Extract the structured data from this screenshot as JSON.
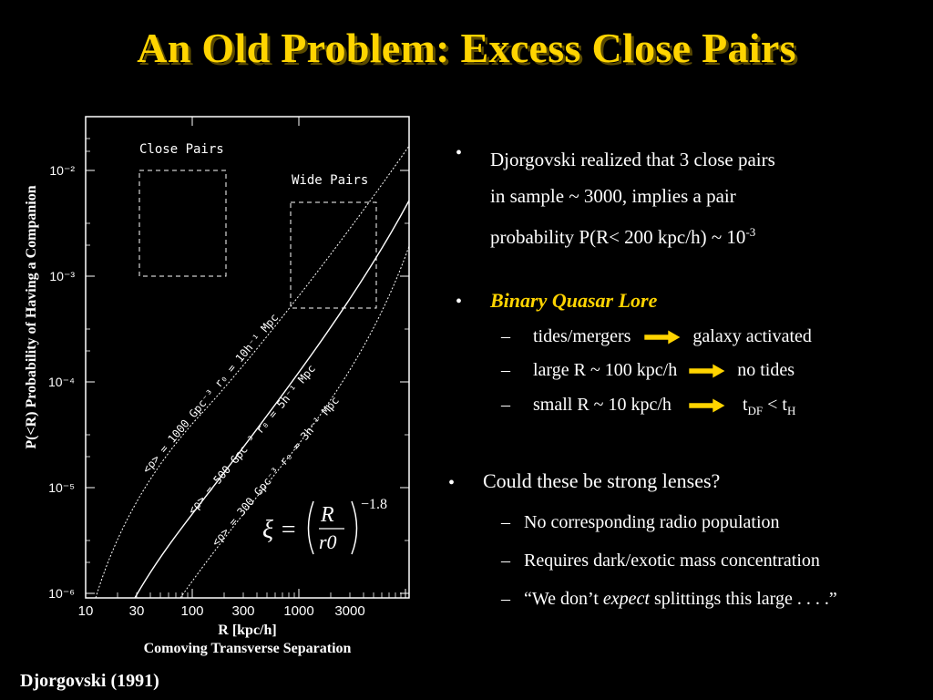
{
  "slide": {
    "title": "An Old Problem: Excess Close Pairs",
    "citation": "Djorgovski (1991)"
  },
  "plot": {
    "ylabel": "P(<R)   Probability of  Having a Companion",
    "xlabel_1": "R   [kpc/h]",
    "xlabel_2": "Comoving Transverse Separation",
    "box_close": "Close Pairs",
    "box_wide": "Wide Pairs",
    "formula_lhs": "ξ =",
    "formula_num": "R",
    "formula_den": "r0",
    "formula_exp": "−1.8",
    "curve_labels": [
      "<ρ> = 1000 Gpc⁻³    r₀ = 10h⁻¹ Mpc",
      "<ρ> = 500 Gpc⁻³    r₀ = 5h⁻¹ Mpc",
      "<ρ> = 300 Gpc⁻³    r₀ = 3h⁻¹ Mpc"
    ],
    "x_ticks": [
      "10",
      "30",
      "100",
      "300",
      "1000",
      "3000"
    ],
    "y_ticks": [
      "10⁻²",
      "10⁻³",
      "10⁻⁴",
      "10⁻⁵",
      "10⁻⁶"
    ]
  },
  "bullets": {
    "b1_line1": "Djorgovski realized that 3 close pairs",
    "b1_line2": "in sample ~ 3000, implies a pair",
    "b1_line3": "probability P(R< 200 kpc/h) ~ 10",
    "b1_exp": "-3",
    "b2_head": "Binary Quasar Lore",
    "b2_s1_left": "tides/mergers",
    "b2_s1_right": "galaxy activated",
    "b2_s2_left": "large R  ~ 100 kpc/h",
    "b2_s2_right": "no tides",
    "b2_s3_left": "small R ~ 10 kpc/h",
    "b2_s3_t1": "t",
    "b2_s3_sub1": "DF",
    "b2_s3_lt": " < t",
    "b2_s3_sub2": "H",
    "b3_head": "Could these be strong lenses?",
    "b3_s1": "No corresponding radio population",
    "b3_s2": "Requires dark/exotic mass concentration",
    "b3_s3_pre": "“We don’t ",
    "b3_s3_em": "expect",
    "b3_s3_post": " splittings this large . . . .”",
    "bullet_char": "•",
    "dash_char": "–"
  },
  "colors": {
    "title": "#ffd400",
    "arrow": "#ffd400",
    "background": "#000000",
    "text": "#ffffff"
  }
}
